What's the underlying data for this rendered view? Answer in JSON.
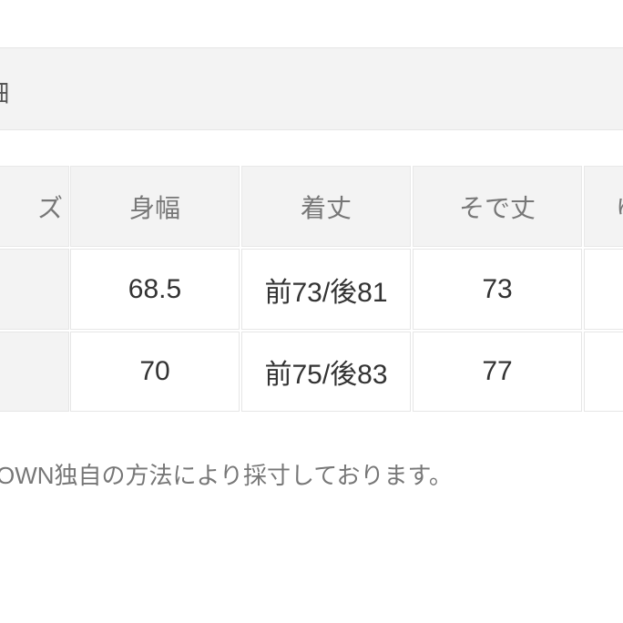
{
  "section_title": "細",
  "table": {
    "headers": [
      "ズ",
      "身幅",
      "着丈",
      "そで丈",
      "ゆ"
    ],
    "rows": [
      {
        "label": "",
        "values": [
          "68.5",
          "前73/後81",
          "73",
          ""
        ]
      },
      {
        "label": "",
        "values": [
          "70",
          "前75/後83",
          "77",
          ""
        ]
      }
    ]
  },
  "note": "OWN独自の方法により採寸しております。"
}
